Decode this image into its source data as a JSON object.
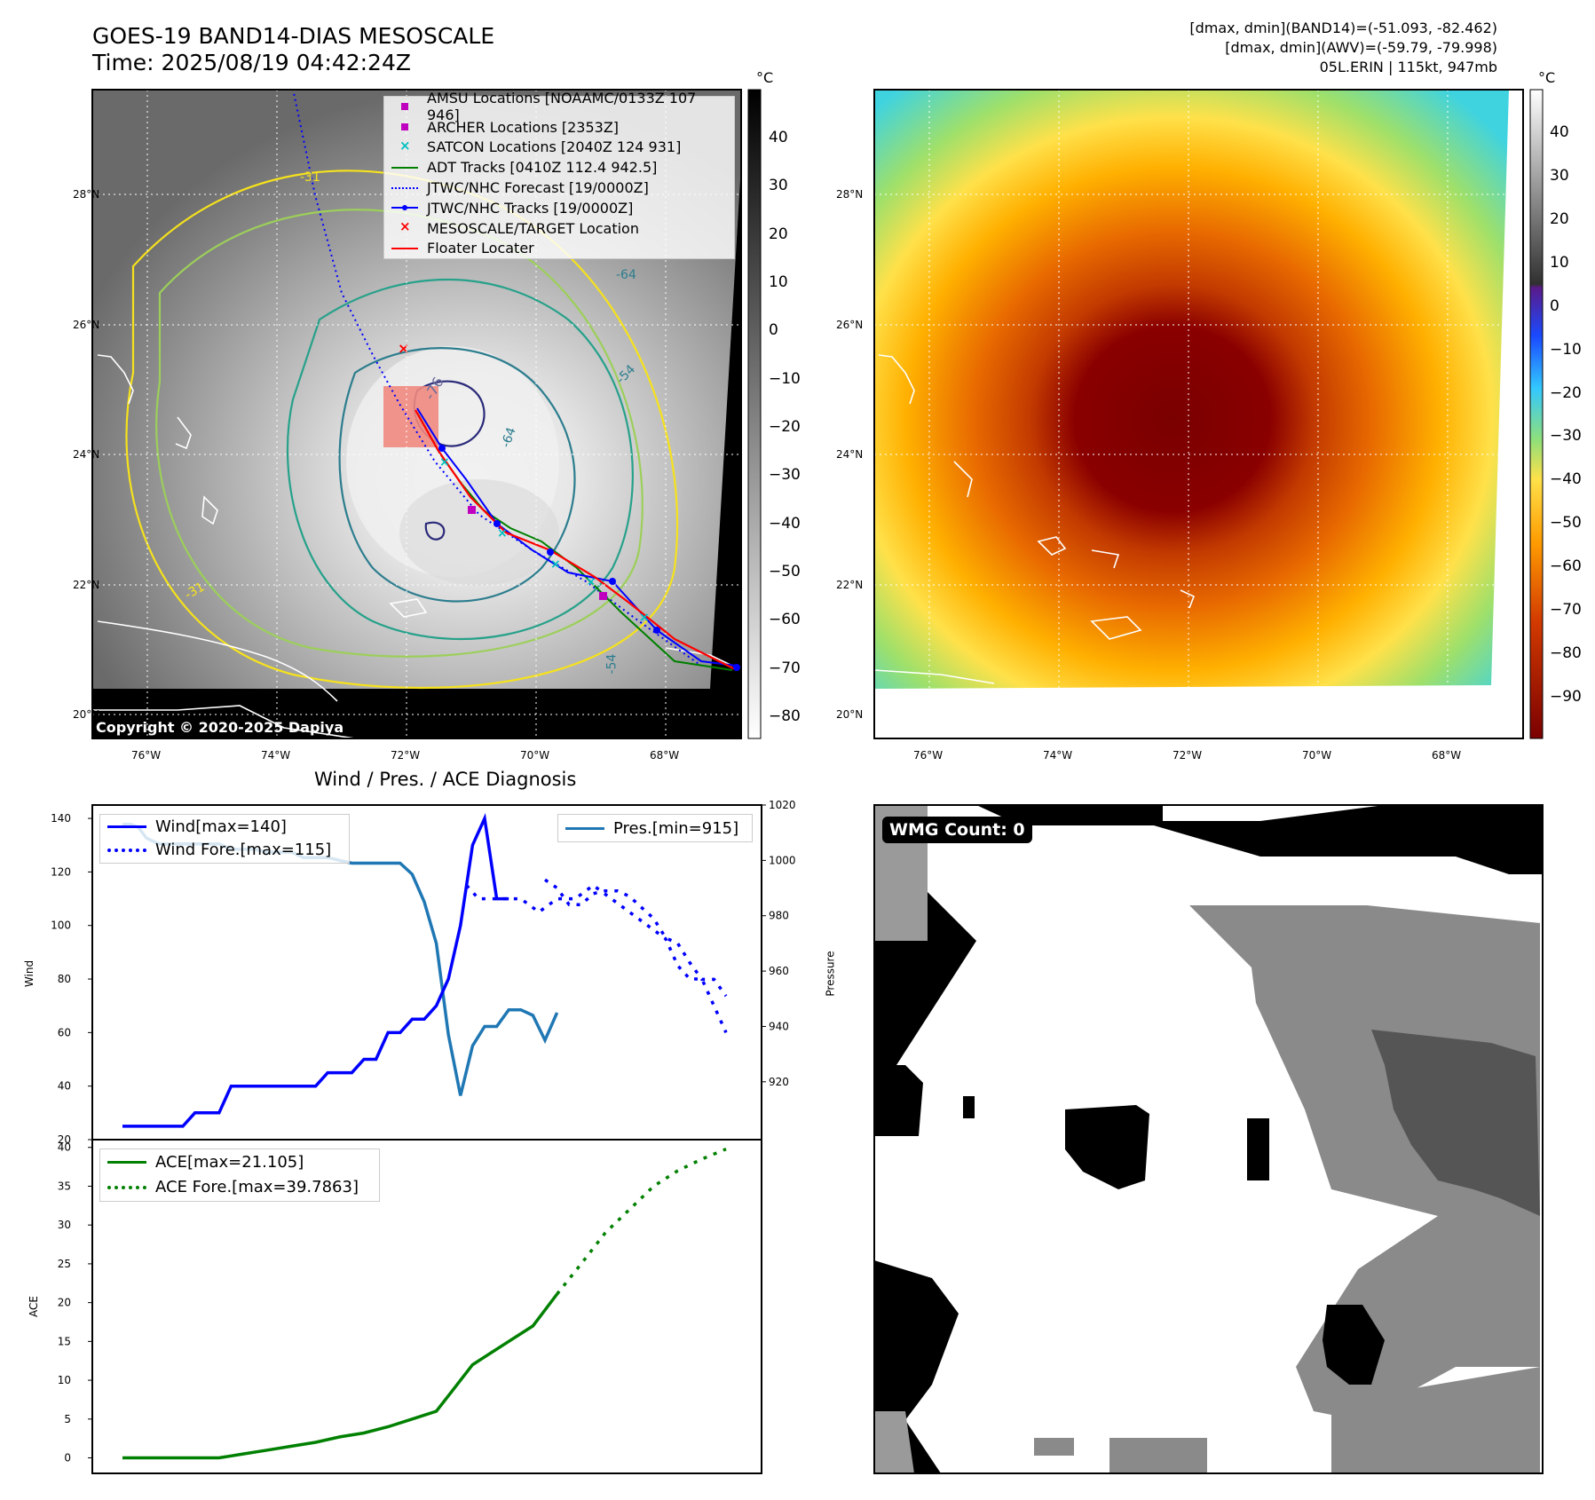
{
  "header": {
    "title_line1": "GOES-19 BAND14-DIAS MESOSCALE",
    "title_line2": "Time: 2025/08/19 04:42:24Z",
    "info_line1": "[dmax, dmin](BAND14)=(-51.093, -82.462)",
    "info_line2": "[dmax, dmin](AWV)=(-59.79, -79.998)",
    "info_line3": "05L.ERIN | 115kt, 947mb"
  },
  "ir_map": {
    "lat_labels": [
      "28°N",
      "26°N",
      "24°N",
      "22°N",
      "20°N"
    ],
    "lon_labels": [
      "76°W",
      "74°W",
      "72°W",
      "70°W",
      "68°W"
    ],
    "copyright": "Copyright © 2020-2025 Dapiya",
    "contour_labels": [
      "-31",
      "-64",
      "-76",
      "-54",
      "-64",
      "-31",
      "-54"
    ],
    "colorbar_unit": "°C",
    "colorbar_ticks": [
      "40",
      "30",
      "20",
      "10",
      "0",
      "−10",
      "−20",
      "−30",
      "−40",
      "−50",
      "−60",
      "−70",
      "−80"
    ],
    "legend": [
      {
        "label": "AMSU Locations [NOAAMC/0133Z 107 946]",
        "symbol": "square",
        "color": "#bf00bf"
      },
      {
        "label": "ARCHER Locations [2353Z]",
        "symbol": "square",
        "color": "#bf00bf"
      },
      {
        "label": "SATCON Locations [2040Z 124 931]",
        "symbol": "x",
        "color": "#00bfbf"
      },
      {
        "label": "ADT Tracks [0410Z 112.4 942.5]",
        "symbol": "line",
        "color": "#008000"
      },
      {
        "label": "JTWC/NHC Forecast [19/0000Z]",
        "symbol": "dotted",
        "color": "#0000ff"
      },
      {
        "label": "JTWC/NHC Tracks [19/0000Z]",
        "symbol": "line-dot",
        "color": "#0000ff"
      },
      {
        "label": "MESOSCALE/TARGET Location",
        "symbol": "x",
        "color": "#ff0000"
      },
      {
        "label": "Floater Locater",
        "symbol": "line",
        "color": "#ff0000"
      }
    ]
  },
  "color_map": {
    "lat_labels": [
      "28°N",
      "26°N",
      "24°N",
      "22°N",
      "20°N"
    ],
    "lon_labels": [
      "76°W",
      "74°W",
      "72°W",
      "70°W",
      "68°W"
    ],
    "colorbar_unit": "°C",
    "colorbar_ticks": [
      "40",
      "30",
      "20",
      "10",
      "0",
      "−10",
      "−20",
      "−30",
      "−40",
      "−50",
      "−60",
      "−70",
      "−80",
      "−90"
    ]
  },
  "diagnosis": {
    "title": "Wind / Pres. / ACE Diagnosis",
    "wind_ylabel": "Wind",
    "pres_ylabel": "Pressure",
    "ace_ylabel": "ACE",
    "legend_wind": "Wind[max=140]",
    "legend_wind_fore": "Wind Fore.[max=115]",
    "legend_pres": "Pres.[min=915]",
    "legend_ace": "ACE[max=21.105]",
    "legend_ace_fore": "ACE Fore.[max=39.7863]"
  },
  "wmg": {
    "badge": "WMG Count: 0"
  },
  "chart_data": [
    {
      "type": "line",
      "title": "Wind / Pres. / ACE Diagnosis",
      "ylabel": "Wind",
      "ylim": [
        20,
        145
      ],
      "xlim": [
        0,
        50
      ],
      "yticks": [
        20,
        40,
        60,
        80,
        100,
        120,
        140
      ],
      "series": [
        {
          "name": "Wind[max=140]",
          "color": "#0000ff",
          "style": "solid",
          "x": [
            0,
            1,
            2,
            3,
            4,
            5,
            6,
            7,
            8,
            9,
            10,
            11,
            12,
            13,
            14,
            15,
            16,
            17,
            18,
            19,
            20,
            21,
            22,
            23,
            24,
            25,
            26,
            27,
            28,
            29,
            30,
            31,
            32
          ],
          "y": [
            25,
            25,
            25,
            25,
            25,
            25,
            30,
            30,
            30,
            40,
            40,
            40,
            40,
            40,
            40,
            40,
            40,
            45,
            45,
            45,
            50,
            50,
            60,
            60,
            65,
            65,
            70,
            80,
            100,
            130,
            140,
            110,
            110
          ]
        },
        {
          "name": "Wind Fore.[max=115]",
          "color": "#0000ff",
          "style": "dotted",
          "x": [
            28.5,
            29.5,
            30,
            31.5,
            33,
            34.5,
            36,
            37.5,
            39,
            40.5,
            42,
            43.5,
            45,
            46,
            47,
            48,
            49,
            50
          ],
          "y": [
            115,
            110,
            110,
            110,
            110,
            105,
            110,
            110,
            115,
            110,
            105,
            100,
            95,
            85,
            80,
            80,
            70,
            60
          ]
        }
      ]
    },
    {
      "type": "line",
      "ylabel": "Pressure",
      "ylim": [
        910,
        1020
      ],
      "yticks": [
        920,
        940,
        960,
        980,
        1000,
        1020
      ],
      "series": [
        {
          "name": "Pres.[min=915]",
          "color": "#1f77b4",
          "style": "solid",
          "x": [
            0,
            0.7,
            1.3,
            2,
            3,
            4,
            5,
            6,
            7,
            8,
            9,
            10,
            11,
            12,
            13,
            14,
            15,
            16,
            17,
            18,
            19,
            20,
            21,
            22,
            23,
            24,
            25,
            26,
            27,
            28,
            29,
            30,
            31,
            32,
            33,
            34,
            35,
            36
          ],
          "y": [
            1013,
            1013,
            1012,
            1008,
            1006,
            1006,
            1006,
            1006,
            1006,
            1006,
            1004,
            1004,
            1004,
            1003,
            1003,
            1003,
            1001,
            1001,
            1001,
            1000,
            999,
            999,
            999,
            999,
            999,
            995,
            985,
            970,
            937,
            915,
            933,
            940,
            940,
            946,
            946,
            944,
            935,
            945
          ]
        },
        {
          "name": "Pres.[min=915] forecast",
          "color": "#0000ff",
          "style": "dotted",
          "x": [
            35,
            36,
            37,
            38,
            39,
            40,
            41,
            42,
            43,
            44,
            45,
            46,
            47,
            48,
            49,
            50
          ],
          "y": [
            993,
            990,
            984,
            984,
            988,
            989,
            989,
            987,
            983,
            979,
            972,
            970,
            963,
            957,
            957,
            951
          ]
        }
      ]
    },
    {
      "type": "line",
      "ylabel": "ACE",
      "ylim": [
        -2,
        41
      ],
      "yticks": [
        0,
        5,
        10,
        15,
        20,
        25,
        30,
        35,
        40
      ],
      "series": [
        {
          "name": "ACE[max=21.105]",
          "color": "#008000",
          "style": "solid",
          "x": [
            0,
            4,
            8,
            10,
            12,
            14,
            16,
            18,
            20,
            22,
            24,
            26,
            27,
            28,
            29,
            30,
            32,
            34,
            36
          ],
          "y": [
            0,
            0,
            0,
            0.5,
            1,
            1.5,
            2,
            2.7,
            3.2,
            4,
            5,
            6,
            8,
            10,
            12,
            13,
            15,
            17,
            21.105
          ]
        },
        {
          "name": "ACE Fore.[max=39.7863]",
          "color": "#008000",
          "style": "dotted",
          "x": [
            36,
            38,
            40,
            42,
            44,
            46,
            48,
            50
          ],
          "y": [
            21.105,
            25,
            29,
            32,
            35,
            37,
            38.5,
            39.7863
          ]
        }
      ]
    }
  ]
}
